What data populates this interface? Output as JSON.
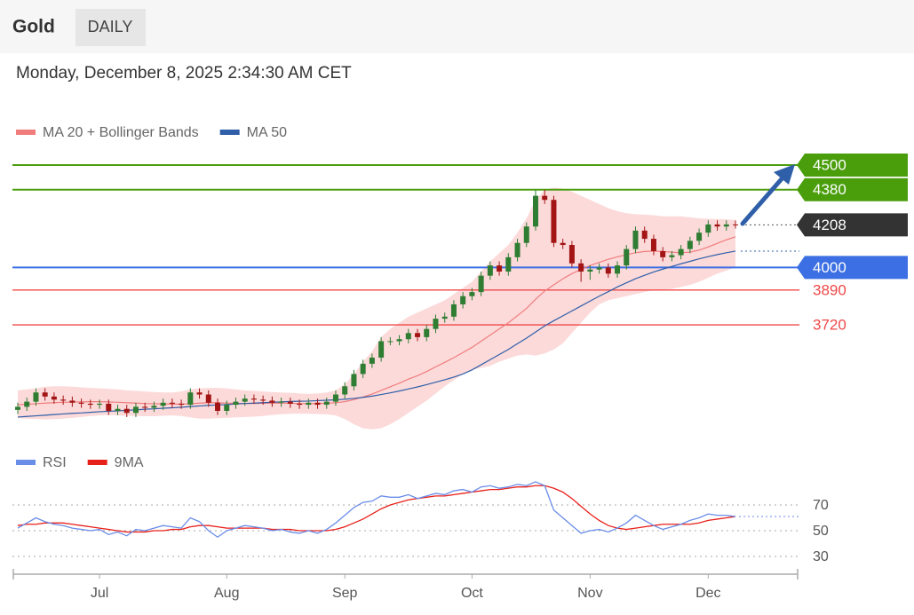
{
  "header": {
    "title": "Gold",
    "timeframe": "DAILY",
    "timestamp": "Monday, December 8, 2025 2:34:30 AM CET"
  },
  "chart_data": [
    {
      "type": "candlestick",
      "categories": [
        null,
        null,
        null,
        null,
        null,
        null,
        null,
        null,
        null,
        "Jul",
        null,
        null,
        null,
        null,
        null,
        null,
        null,
        null,
        null,
        null,
        null,
        null,
        null,
        "Aug",
        null,
        null,
        null,
        null,
        null,
        null,
        null,
        null,
        null,
        null,
        null,
        null,
        "Sep",
        null,
        null,
        null,
        null,
        null,
        null,
        null,
        null,
        null,
        null,
        null,
        null,
        null,
        "Oct",
        null,
        null,
        null,
        null,
        null,
        null,
        null,
        null,
        null,
        null,
        null,
        null,
        "Nov",
        null,
        null,
        null,
        null,
        null,
        null,
        null,
        null,
        null,
        null,
        null,
        null,
        "Dec",
        null,
        null,
        null
      ],
      "open": [
        3305,
        3320,
        3345,
        3390,
        3370,
        3355,
        3350,
        3340,
        3335,
        3330,
        3335,
        3300,
        3310,
        3290,
        3320,
        3315,
        3325,
        3340,
        3335,
        3330,
        3390,
        3380,
        3340,
        3300,
        3330,
        3345,
        3360,
        3355,
        3350,
        3340,
        3345,
        3335,
        3330,
        3340,
        3330,
        3345,
        3380,
        3420,
        3480,
        3530,
        3560,
        3640,
        3640,
        3650,
        3680,
        3660,
        3700,
        3750,
        3760,
        3820,
        3860,
        3880,
        3960,
        4010,
        3980,
        4050,
        4120,
        4200,
        4350,
        4330,
        4120,
        4110,
        4020,
        3980,
        3990,
        4000,
        3970,
        4010,
        4090,
        4180,
        4140,
        4080,
        4050,
        4060,
        4090,
        4130,
        4170,
        4210,
        4200,
        4210
      ],
      "high": [
        3340,
        3365,
        3410,
        3410,
        3390,
        3375,
        3370,
        3360,
        3355,
        3355,
        3355,
        3330,
        3330,
        3340,
        3340,
        3345,
        3360,
        3360,
        3355,
        3410,
        3410,
        3400,
        3360,
        3350,
        3365,
        3380,
        3380,
        3375,
        3370,
        3365,
        3365,
        3355,
        3360,
        3360,
        3365,
        3400,
        3440,
        3500,
        3550,
        3580,
        3660,
        3660,
        3670,
        3700,
        3700,
        3720,
        3770,
        3780,
        3840,
        3880,
        3900,
        3980,
        4030,
        4030,
        4070,
        4140,
        4220,
        4380,
        4380,
        4350,
        4140,
        4130,
        4040,
        4010,
        4020,
        4020,
        4030,
        4110,
        4200,
        4200,
        4160,
        4100,
        4080,
        4110,
        4150,
        4190,
        4230,
        4230,
        4230,
        4230
      ],
      "low": [
        3285,
        3300,
        3325,
        3350,
        3335,
        3330,
        3320,
        3315,
        3310,
        3310,
        3280,
        3280,
        3270,
        3270,
        3295,
        3295,
        3305,
        3315,
        3310,
        3310,
        3360,
        3320,
        3280,
        3280,
        3310,
        3325,
        3335,
        3330,
        3320,
        3320,
        3315,
        3310,
        3310,
        3310,
        3310,
        3325,
        3360,
        3400,
        3460,
        3510,
        3540,
        3620,
        3620,
        3630,
        3640,
        3640,
        3680,
        3730,
        3740,
        3800,
        3840,
        3860,
        3940,
        3960,
        3960,
        4030,
        4100,
        4180,
        4310,
        4100,
        4090,
        4000,
        3930,
        3940,
        3970,
        3950,
        3950,
        3990,
        4070,
        4120,
        4060,
        4030,
        4030,
        4040,
        4070,
        4110,
        4150,
        4180,
        4180,
        4190
      ],
      "close": [
        3320,
        3345,
        3390,
        3370,
        3355,
        3350,
        3340,
        3335,
        3330,
        3335,
        3300,
        3310,
        3290,
        3320,
        3315,
        3325,
        3340,
        3335,
        3330,
        3390,
        3380,
        3340,
        3300,
        3330,
        3345,
        3360,
        3355,
        3350,
        3340,
        3345,
        3335,
        3330,
        3340,
        3330,
        3345,
        3380,
        3420,
        3480,
        3530,
        3560,
        3640,
        3640,
        3650,
        3680,
        3660,
        3700,
        3750,
        3760,
        3820,
        3860,
        3880,
        3960,
        4010,
        3980,
        4050,
        4120,
        4200,
        4350,
        4330,
        4120,
        4110,
        4020,
        3980,
        3990,
        4000,
        3970,
        4010,
        4090,
        4180,
        4140,
        4080,
        4050,
        4060,
        4090,
        4130,
        4170,
        4210,
        4200,
        4210,
        4208
      ],
      "up_color": "#2e7d32",
      "down_color": "#a31515",
      "series": [
        {
          "name": "MA 20 + Bollinger Bands",
          "color": "#f07c7c",
          "band_color": "#fbd3d3",
          "values": [
            3330,
            3332,
            3335,
            3338,
            3340,
            3342,
            3343,
            3344,
            3345,
            3345,
            3344,
            3342,
            3340,
            3338,
            3336,
            3335,
            3334,
            3333,
            3333,
            3335,
            3338,
            3340,
            3340,
            3338,
            3337,
            3336,
            3336,
            3337,
            3338,
            3338,
            3337,
            3336,
            3335,
            3336,
            3337,
            3340,
            3345,
            3355,
            3368,
            3382,
            3400,
            3418,
            3435,
            3455,
            3472,
            3492,
            3515,
            3537,
            3560,
            3585,
            3610,
            3640,
            3670,
            3700,
            3730,
            3765,
            3800,
            3845,
            3885,
            3915,
            3945,
            3970,
            3990,
            4010,
            4025,
            4040,
            4052,
            4062,
            4072,
            4078,
            4080,
            4078,
            4075,
            4072,
            4075,
            4085,
            4100,
            4118,
            4135,
            4150
          ],
          "upper": [
            3400,
            3405,
            3410,
            3418,
            3420,
            3420,
            3418,
            3415,
            3412,
            3410,
            3408,
            3405,
            3400,
            3398,
            3395,
            3392,
            3390,
            3390,
            3395,
            3405,
            3410,
            3412,
            3412,
            3410,
            3405,
            3400,
            3398,
            3395,
            3392,
            3390,
            3388,
            3385,
            3383,
            3385,
            3390,
            3400,
            3430,
            3480,
            3540,
            3590,
            3660,
            3700,
            3730,
            3760,
            3780,
            3800,
            3820,
            3840,
            3870,
            3900,
            3930,
            3980,
            4030,
            4070,
            4110,
            4170,
            4240,
            4330,
            4380,
            4390,
            4385,
            4370,
            4350,
            4330,
            4310,
            4290,
            4275,
            4265,
            4260,
            4258,
            4255,
            4250,
            4250,
            4250,
            4245,
            4240,
            4238,
            4236,
            4235,
            4232
          ],
          "lower": [
            3265,
            3262,
            3260,
            3258,
            3260,
            3262,
            3266,
            3270,
            3275,
            3278,
            3280,
            3278,
            3276,
            3275,
            3274,
            3274,
            3276,
            3278,
            3275,
            3268,
            3262,
            3262,
            3264,
            3266,
            3268,
            3270,
            3272,
            3275,
            3280,
            3284,
            3286,
            3287,
            3286,
            3285,
            3283,
            3278,
            3260,
            3235,
            3215,
            3210,
            3215,
            3235,
            3260,
            3290,
            3320,
            3350,
            3385,
            3420,
            3450,
            3480,
            3500,
            3510,
            3520,
            3540,
            3555,
            3570,
            3575,
            3570,
            3580,
            3600,
            3630,
            3680,
            3730,
            3780,
            3820,
            3840,
            3850,
            3860,
            3870,
            3880,
            3890,
            3890,
            3895,
            3905,
            3915,
            3930,
            3950,
            3970,
            3985,
            4000
          ]
        },
        {
          "name": "MA 50",
          "color": "#2f5fa8",
          "values": [
            3270,
            3273,
            3276,
            3279,
            3282,
            3285,
            3288,
            3290,
            3293,
            3296,
            3298,
            3300,
            3303,
            3305,
            3308,
            3310,
            3313,
            3315,
            3318,
            3321,
            3324,
            3327,
            3329,
            3331,
            3334,
            3336,
            3338,
            3340,
            3342,
            3344,
            3346,
            3347,
            3348,
            3350,
            3352,
            3354,
            3357,
            3361,
            3366,
            3372,
            3380,
            3388,
            3397,
            3407,
            3417,
            3428,
            3440,
            3452,
            3465,
            3480,
            3500,
            3525,
            3550,
            3575,
            3600,
            3628,
            3655,
            3685,
            3715,
            3740,
            3764,
            3788,
            3812,
            3836,
            3860,
            3882,
            3905,
            3925,
            3945,
            3962,
            3978,
            3992,
            4005,
            4018,
            4030,
            4042,
            4053,
            4063,
            4072,
            4080
          ]
        }
      ],
      "levels": [
        {
          "value": 4500,
          "color": "#4a9e0c",
          "style": "box"
        },
        {
          "value": 4380,
          "color": "#4a9e0c",
          "style": "box"
        },
        {
          "value": 4000,
          "color": "#3b6fe3",
          "style": "box"
        },
        {
          "value": 3890,
          "color": "#f04848",
          "style": "text"
        },
        {
          "value": 3720,
          "color": "#f04848",
          "style": "text"
        }
      ],
      "last_color": "#333333",
      "ylim": [
        3180,
        4610
      ]
    },
    {
      "type": "line",
      "series": [
        {
          "name": "RSI",
          "color": "#6a8de8",
          "values": [
            52,
            56,
            60,
            57,
            55,
            54,
            52,
            51,
            50,
            51,
            47,
            49,
            46,
            51,
            50,
            52,
            54,
            53,
            52,
            60,
            57,
            50,
            45,
            50,
            52,
            54,
            53,
            52,
            50,
            51,
            49,
            48,
            50,
            48,
            51,
            56,
            62,
            68,
            72,
            73,
            77,
            76,
            76,
            78,
            75,
            77,
            79,
            78,
            81,
            82,
            80,
            84,
            85,
            83,
            84,
            86,
            85,
            88,
            85,
            66,
            60,
            54,
            48,
            50,
            51,
            49,
            52,
            56,
            62,
            58,
            54,
            51,
            53,
            55,
            58,
            60,
            63,
            62,
            62,
            61
          ]
        },
        {
          "name": "9MA",
          "color": "#e8201a",
          "values": [
            54,
            55,
            55,
            56,
            56,
            56,
            55,
            54,
            53,
            52,
            51,
            50,
            49,
            49,
            49,
            50,
            50,
            51,
            51,
            53,
            54,
            54,
            53,
            52,
            52,
            52,
            52,
            52,
            51,
            51,
            51,
            50,
            50,
            50,
            50,
            51,
            53,
            56,
            59,
            63,
            67,
            70,
            72,
            74,
            75,
            76,
            77,
            77,
            78,
            79,
            80,
            81,
            82,
            82,
            83,
            84,
            84,
            85,
            85,
            83,
            80,
            75,
            69,
            63,
            58,
            54,
            52,
            51,
            52,
            53,
            54,
            55,
            55,
            55,
            55,
            56,
            58,
            59,
            60,
            61
          ]
        }
      ],
      "ylim": [
        20,
        100
      ],
      "yticks": [
        30,
        50,
        70
      ],
      "grid": true
    }
  ]
}
